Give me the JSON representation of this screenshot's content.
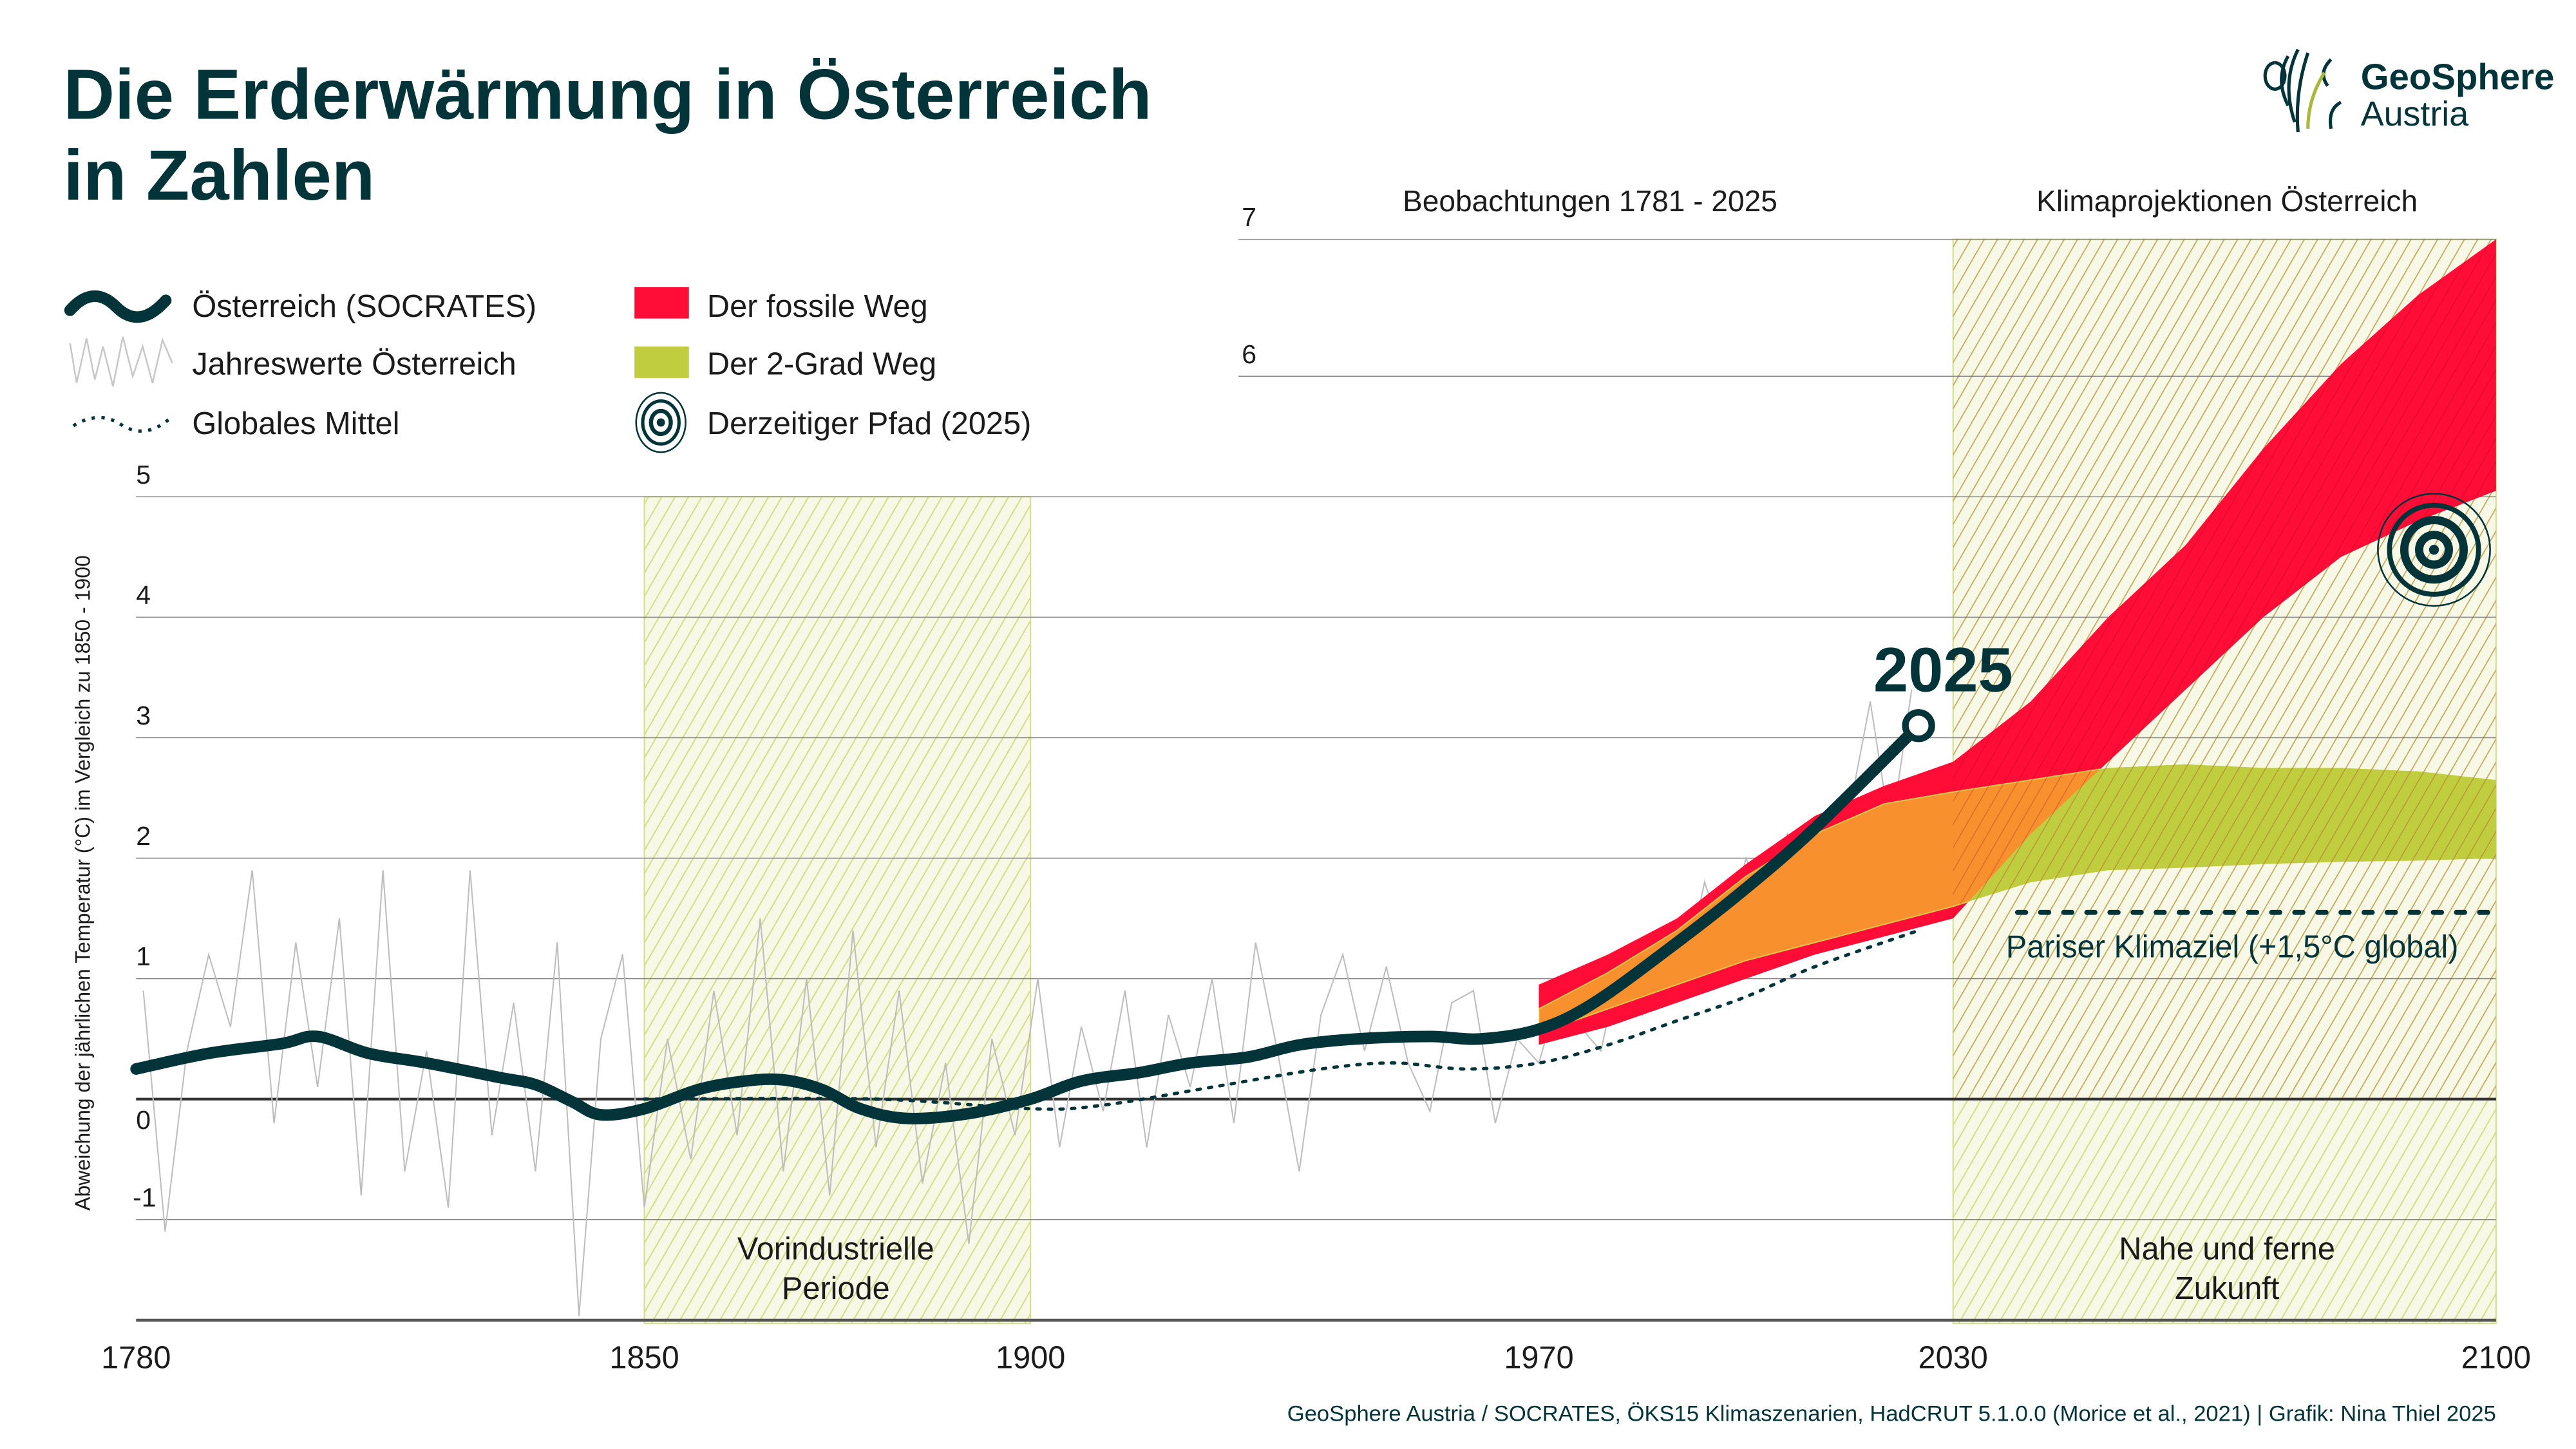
{
  "header": {
    "title_line1": "Die Erderwärmung in Österreich",
    "title_line2": "in Zahlen",
    "logo_line1": "GeoSphere",
    "logo_line2": "Austria"
  },
  "legend": {
    "socrates": "Österreich (SOCRATES)",
    "annual": "Jahreswerte Österreich",
    "global": "Globales Mittel",
    "fossil": "Der fossile Weg",
    "two_degree": "Der 2-Grad Weg",
    "current_path": "Derzeitiger Pfad (2025)"
  },
  "colors": {
    "dark": "#03343a",
    "fossil": "#ff0d36",
    "two_degree": "#c0cd3e",
    "overlap": "#f7902d",
    "hatch": "#d3df8a"
  },
  "chart_data": {
    "type": "line",
    "title": "Die Erderwärmung in Österreich in Zahlen",
    "ylabel": "Abweichung der jährlichen Temperatur (°C) im Vergleich zu 1850 - 1900",
    "xlabel": "",
    "xlim": [
      1780,
      2100
    ],
    "ylim": [
      -1.8,
      7
    ],
    "x_ticks": [
      "1780",
      "1850",
      "1900",
      "1970",
      "2030",
      "2100"
    ],
    "y_ticks": [
      "-1",
      "0",
      "1",
      "2",
      "3",
      "4",
      "5",
      "6",
      "7"
    ],
    "section_labels": {
      "observations": "Beobachtungen 1781 - 2025",
      "projections": "Klimaprojektionen Österreich"
    },
    "shaded_regions": [
      {
        "from": 1850,
        "to": 1900,
        "label1": "Vorindustrielle",
        "label2": "Periode"
      },
      {
        "from": 2030,
        "to": 2100,
        "label1": "Nahe und ferne",
        "label2": "Zukunft"
      }
    ],
    "annotation_2025": "2025",
    "paris_target": {
      "value": 1.55,
      "label": "Pariser Klimaziel (+1,5°C global)"
    },
    "current_path_marker": {
      "year": 2092,
      "value": 4.56
    },
    "series": [
      {
        "name": "Österreich (SOCRATES)",
        "x": [
          1780,
          1790,
          1800,
          1805,
          1812,
          1820,
          1830,
          1835,
          1840,
          1844,
          1850,
          1857,
          1863,
          1868,
          1873,
          1878,
          1884,
          1892,
          1900,
          1907,
          1915,
          1922,
          1930,
          1937,
          1945,
          1955,
          1962,
          1970,
          1978,
          1990,
          2000,
          2010,
          2025
        ],
        "y": [
          0.25,
          0.38,
          0.46,
          0.52,
          0.38,
          0.3,
          0.18,
          0.12,
          -0.02,
          -0.13,
          -0.08,
          0.08,
          0.15,
          0.16,
          0.08,
          -0.08,
          -0.16,
          -0.12,
          0.0,
          0.15,
          0.22,
          0.3,
          0.35,
          0.45,
          0.5,
          0.52,
          0.5,
          0.58,
          0.8,
          1.3,
          1.75,
          2.25,
          3.1
        ]
      },
      {
        "name": "Jahreswerte Österreich",
        "x": [
          1781,
          1784,
          1787,
          1790,
          1793,
          1796,
          1799,
          1802,
          1805,
          1808,
          1811,
          1814,
          1817,
          1820,
          1823,
          1826,
          1829,
          1832,
          1835,
          1838,
          1841,
          1844,
          1847,
          1850,
          1853,
          1856,
          1859,
          1862,
          1865,
          1868,
          1871,
          1874,
          1877,
          1880,
          1883,
          1886,
          1889,
          1892,
          1895,
          1898,
          1901,
          1904,
          1907,
          1910,
          1913,
          1916,
          1919,
          1922,
          1925,
          1928,
          1931,
          1934,
          1937,
          1940,
          1943,
          1946,
          1949,
          1952,
          1955,
          1958,
          1961,
          1964,
          1967,
          1970,
          1973,
          1976,
          1979,
          1982,
          1985,
          1988,
          1991,
          1994,
          1997,
          2000,
          2003,
          2006,
          2009,
          2012,
          2015,
          2018,
          2021,
          2024
        ],
        "y": [
          0.9,
          -1.1,
          0.4,
          1.2,
          0.6,
          1.9,
          -0.2,
          1.3,
          0.1,
          1.5,
          -0.8,
          1.9,
          -0.6,
          0.4,
          -0.9,
          1.9,
          -0.3,
          0.8,
          -0.6,
          1.3,
          -1.8,
          0.5,
          1.2,
          -0.9,
          0.5,
          -0.5,
          0.9,
          -0.3,
          1.5,
          -0.6,
          1.0,
          -0.8,
          1.4,
          -0.4,
          0.9,
          -0.7,
          0.3,
          -1.2,
          0.5,
          -0.3,
          1.0,
          -0.4,
          0.6,
          -0.1,
          0.9,
          -0.4,
          0.7,
          0.1,
          1.0,
          -0.2,
          1.3,
          0.4,
          -0.6,
          0.7,
          1.2,
          0.4,
          1.1,
          0.3,
          -0.1,
          0.8,
          0.9,
          -0.2,
          0.5,
          0.3,
          0.9,
          0.6,
          0.4,
          1.2,
          0.7,
          1.4,
          1.0,
          1.8,
          1.3,
          2.0,
          1.6,
          2.2,
          1.9,
          2.3,
          2.4,
          3.3,
          2.2,
          3.4
        ]
      },
      {
        "name": "Globales Mittel",
        "x": [
          1850,
          1880,
          1900,
          1910,
          1925,
          1940,
          1950,
          1960,
          1970,
          1980,
          1990,
          2000,
          2010,
          2025
        ],
        "y": [
          0.0,
          0.0,
          -0.08,
          -0.05,
          0.1,
          0.25,
          0.3,
          0.25,
          0.3,
          0.45,
          0.65,
          0.85,
          1.1,
          1.4
        ]
      }
    ],
    "bands": [
      {
        "name": "Der fossile Weg",
        "x": [
          1970,
          1980,
          1990,
          2000,
          2010,
          2020,
          2030,
          2040,
          2050,
          2060,
          2070,
          2080,
          2090,
          2100
        ],
        "lower": [
          0.45,
          0.6,
          0.8,
          1.0,
          1.2,
          1.35,
          1.5,
          2.2,
          2.8,
          3.4,
          4.0,
          4.5,
          4.8,
          5.05
        ],
        "upper": [
          0.95,
          1.2,
          1.5,
          1.95,
          2.35,
          2.6,
          2.8,
          3.3,
          4.0,
          4.6,
          5.4,
          6.1,
          6.6,
          7.0
        ]
      },
      {
        "name": "Der 2-Grad Weg",
        "x": [
          1970,
          1980,
          1990,
          2000,
          2010,
          2020,
          2030,
          2040,
          2050,
          2060,
          2070,
          2080,
          2090,
          2100
        ],
        "lower": [
          0.55,
          0.75,
          0.95,
          1.15,
          1.3,
          1.45,
          1.6,
          1.8,
          1.9,
          1.92,
          1.95,
          1.97,
          1.98,
          2.0
        ],
        "upper": [
          0.75,
          1.05,
          1.4,
          1.85,
          2.2,
          2.45,
          2.55,
          2.65,
          2.75,
          2.78,
          2.75,
          2.75,
          2.72,
          2.65
        ]
      }
    ]
  },
  "footer": {
    "source": "GeoSphere Austria / SOCRATES, ÖKS15 Klimaszenarien, HadCRUT 5.1.0.0 (Morice et al., 2021) | Grafik: Nina Thiel 2025"
  }
}
